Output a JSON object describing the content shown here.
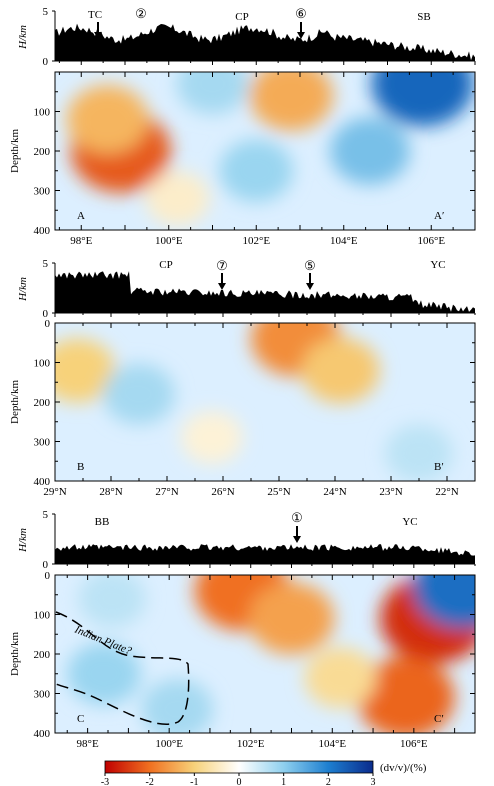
{
  "chart_data": [
    {
      "type": "heatmap",
      "panel": "A-A'",
      "topo": {
        "ylabel": "H/km",
        "yticks": [
          "0",
          "5"
        ],
        "labels": [
          "TC",
          "②",
          "CP",
          "⑥",
          "SB"
        ],
        "arrows": [
          "TC",
          "⑥"
        ]
      },
      "x_range": [
        97.4,
        107.0
      ],
      "xticks": [
        "98°E",
        "100°E",
        "102°E",
        "104°E",
        "106°E"
      ],
      "ylabel": "Depth/km",
      "yticks": [
        "100",
        "200",
        "300",
        "400"
      ],
      "ylim": [
        0,
        400
      ],
      "corner_labels": [
        "A",
        "A′"
      ],
      "anomalies": [
        {
          "x": 98.9,
          "depth": 200,
          "dvv": -2.2
        },
        {
          "x": 98.6,
          "depth": 120,
          "dvv": -1.3
        },
        {
          "x": 102.8,
          "depth": 60,
          "dvv": -1.4
        },
        {
          "x": 100.2,
          "depth": 320,
          "dvv": -0.4
        },
        {
          "x": 105.8,
          "depth": 30,
          "dvv": 2.3
        },
        {
          "x": 104.6,
          "depth": 200,
          "dvv": 1.2
        },
        {
          "x": 102.0,
          "depth": 250,
          "dvv": 0.9
        },
        {
          "x": 101.0,
          "depth": 30,
          "dvv": 0.8
        }
      ]
    },
    {
      "type": "heatmap",
      "panel": "B-B'",
      "topo": {
        "ylabel": "H/km",
        "yticks": [
          "0",
          "5"
        ],
        "labels": [
          "CP",
          "⑦",
          "⑤",
          "YC"
        ],
        "arrows": [
          "⑦",
          "⑤"
        ]
      },
      "x_range": [
        29.0,
        21.5
      ],
      "xticks": [
        "29°N",
        "28°N",
        "27°N",
        "26°N",
        "25°N",
        "24°N",
        "23°N",
        "22°N"
      ],
      "ylabel": "Depth/km",
      "yticks": [
        "0",
        "100",
        "200",
        "300",
        "400"
      ],
      "ylim": [
        0,
        400
      ],
      "corner_labels": [
        "B",
        "B′"
      ],
      "anomalies": [
        {
          "x": 24.7,
          "depth": 40,
          "dvv": -1.7
        },
        {
          "x": 23.9,
          "depth": 120,
          "dvv": -1.1
        },
        {
          "x": 28.6,
          "depth": 120,
          "dvv": -1.0
        },
        {
          "x": 26.2,
          "depth": 290,
          "dvv": -0.3
        },
        {
          "x": 27.5,
          "depth": 180,
          "dvv": 0.8
        },
        {
          "x": 22.5,
          "depth": 330,
          "dvv": 0.6
        }
      ]
    },
    {
      "type": "heatmap",
      "panel": "C-C'",
      "topo": {
        "ylabel": "H/km",
        "yticks": [
          "0",
          "5"
        ],
        "labels": [
          "BB",
          "①",
          "YC"
        ],
        "arrows": [
          "①"
        ]
      },
      "x_range": [
        97.2,
        107.5
      ],
      "xticks": [
        "98°E",
        "100°E",
        "102°E",
        "104°E",
        "106°E"
      ],
      "ylabel": "Depth/km",
      "yticks": [
        "0",
        "100",
        "200",
        "300",
        "400"
      ],
      "ylim": [
        0,
        400
      ],
      "corner_labels": [
        "C",
        "C′"
      ],
      "annotations": [
        "Indian Plate?"
      ],
      "anomalies": [
        {
          "x": 106.5,
          "depth": 110,
          "dvv": -2.6
        },
        {
          "x": 101.8,
          "depth": 40,
          "dvv": -2.0
        },
        {
          "x": 103.0,
          "depth": 110,
          "dvv": -1.5
        },
        {
          "x": 105.8,
          "depth": 310,
          "dvv": -2.1
        },
        {
          "x": 104.2,
          "depth": 260,
          "dvv": -0.8
        },
        {
          "x": 98.4,
          "depth": 250,
          "dvv": 0.9
        },
        {
          "x": 98.6,
          "depth": 60,
          "dvv": 0.6
        },
        {
          "x": 100.2,
          "depth": 340,
          "dvv": 0.8
        },
        {
          "x": 107.2,
          "depth": 30,
          "dvv": 2.2
        }
      ]
    }
  ],
  "colorbar": {
    "label": "(dv/v)/(%)",
    "range": [
      -3,
      3
    ],
    "ticks": [
      "-3",
      "-2",
      "-1",
      "0",
      "1",
      "2",
      "3"
    ],
    "colors": [
      "#c00000",
      "#f07020",
      "#f7d27a",
      "#ffffff",
      "#8fd0ee",
      "#1e7fd0",
      "#0a2b8c"
    ]
  }
}
